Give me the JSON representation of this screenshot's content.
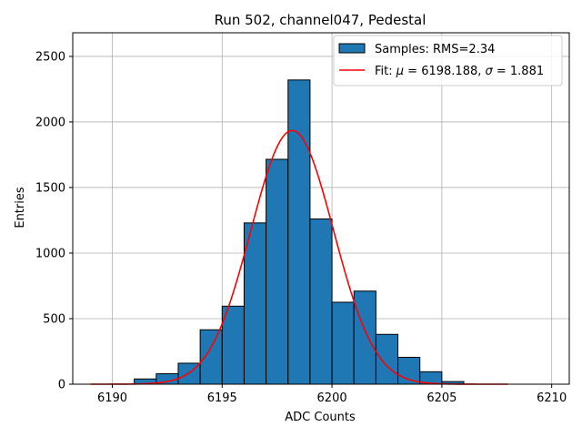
{
  "chart_data": {
    "type": "bar",
    "title": "Run 502, channel047, Pedestal",
    "xlabel": "ADC Counts",
    "ylabel": "Entries",
    "xlim": [
      6188.2,
      6210.8
    ],
    "ylim": [
      0,
      2680
    ],
    "grid": true,
    "legend_position": "top-right",
    "x_ticks": [
      6190,
      6195,
      6200,
      6205,
      6210
    ],
    "y_ticks": [
      0,
      500,
      1000,
      1500,
      2000,
      2500
    ],
    "histogram": {
      "label": "Samples: RMS=2.34",
      "color": "#1f77b4",
      "edgecolor": "#000000",
      "bin_edges": [
        6191,
        6192,
        6193,
        6194,
        6195,
        6196,
        6197,
        6198,
        6199,
        6200,
        6201,
        6202,
        6203,
        6204,
        6205,
        6206
      ],
      "values": [
        40,
        80,
        160,
        415,
        595,
        1230,
        1715,
        2320,
        1260,
        625,
        710,
        380,
        205,
        95,
        20
      ]
    },
    "fit": {
      "label": "Fit: μ = 6198.188, σ = 1.881",
      "label_parts": {
        "prefix": "Fit: ",
        "mu_symbol": "μ",
        "mu_text": " = 6198.188, ",
        "sigma_symbol": "σ",
        "sigma_text": " = 1.881"
      },
      "color": "#ff0000",
      "mu": 6198.188,
      "sigma": 1.881,
      "amplitude": 1935,
      "x_range": [
        6189,
        6208
      ]
    }
  }
}
